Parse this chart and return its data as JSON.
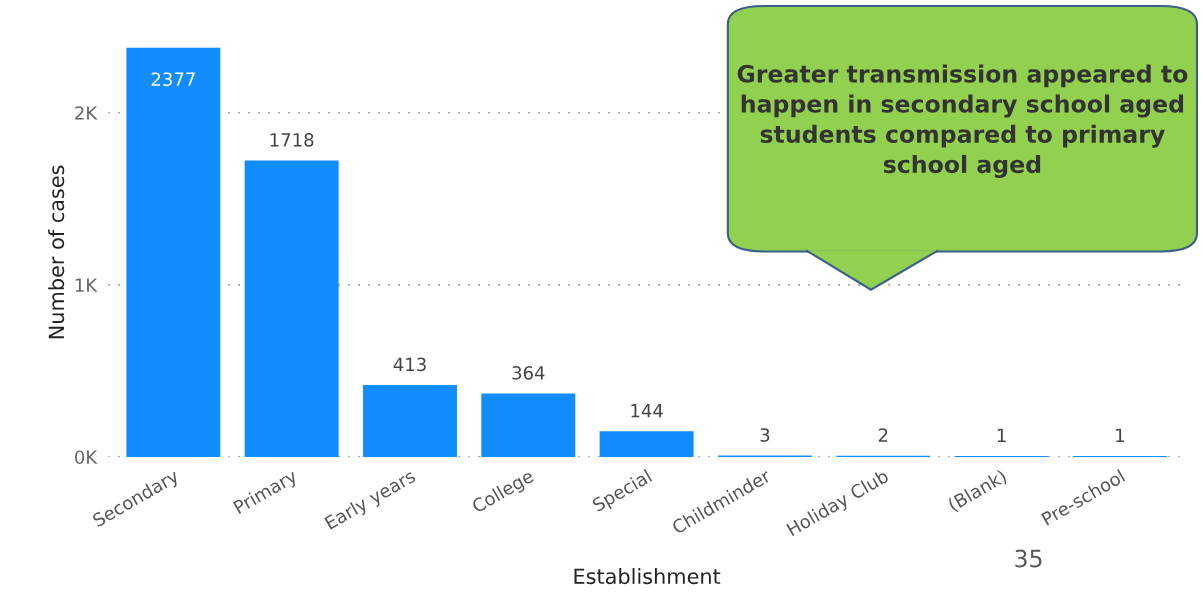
{
  "chart_data": {
    "type": "bar",
    "xlabel": "Establishment",
    "ylabel": "Number of cases",
    "categories": [
      "Secondary",
      "Primary",
      "Early years",
      "College",
      "Special",
      "Childminder",
      "Holiday Club",
      "(Blank)",
      "Pre-school"
    ],
    "values": [
      2377,
      1718,
      413,
      364,
      144,
      3,
      2,
      1,
      1
    ],
    "color": "#118dff",
    "data_labels": true,
    "ylim": [
      0,
      2377
    ],
    "yticks": [
      {
        "value": 0,
        "label": "0K"
      },
      {
        "value": 1000,
        "label": "1K"
      },
      {
        "value": 2000,
        "label": "2K"
      }
    ],
    "grid": "y",
    "annotations": [
      "Greater transmission appeared to happen in secondary school aged students compared to primary school aged",
      "35"
    ]
  }
}
